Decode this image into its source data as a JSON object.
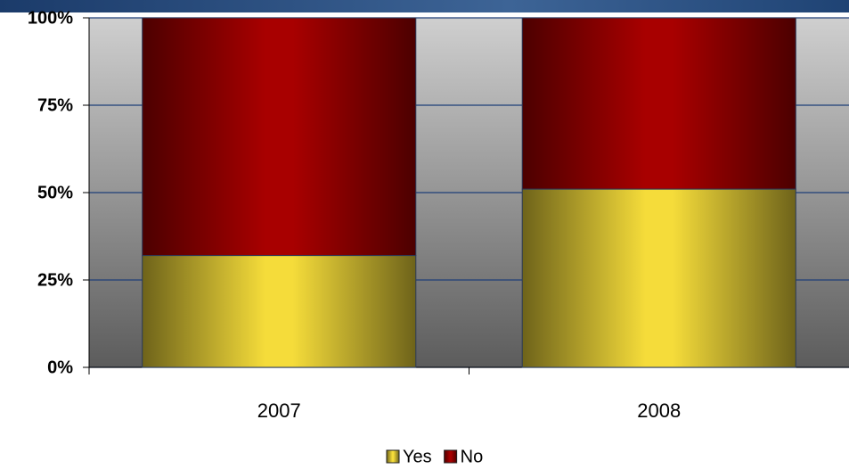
{
  "chart_data": {
    "type": "stacked_bar",
    "categories": [
      "2007",
      "2008"
    ],
    "series": [
      {
        "name": "Yes",
        "color": "#f5dc3a",
        "values": [
          32,
          51
        ]
      },
      {
        "name": "No",
        "color": "#a80000",
        "values": [
          68,
          49
        ]
      }
    ],
    "ylim": [
      0,
      100
    ],
    "yticks": [
      {
        "value": 0,
        "label": "0%"
      },
      {
        "value": 25,
        "label": "25%"
      },
      {
        "value": 50,
        "label": "50%"
      },
      {
        "value": 75,
        "label": "75%"
      },
      {
        "value": 100,
        "label": "100%"
      }
    ],
    "grid": true,
    "legend": "bottom"
  }
}
